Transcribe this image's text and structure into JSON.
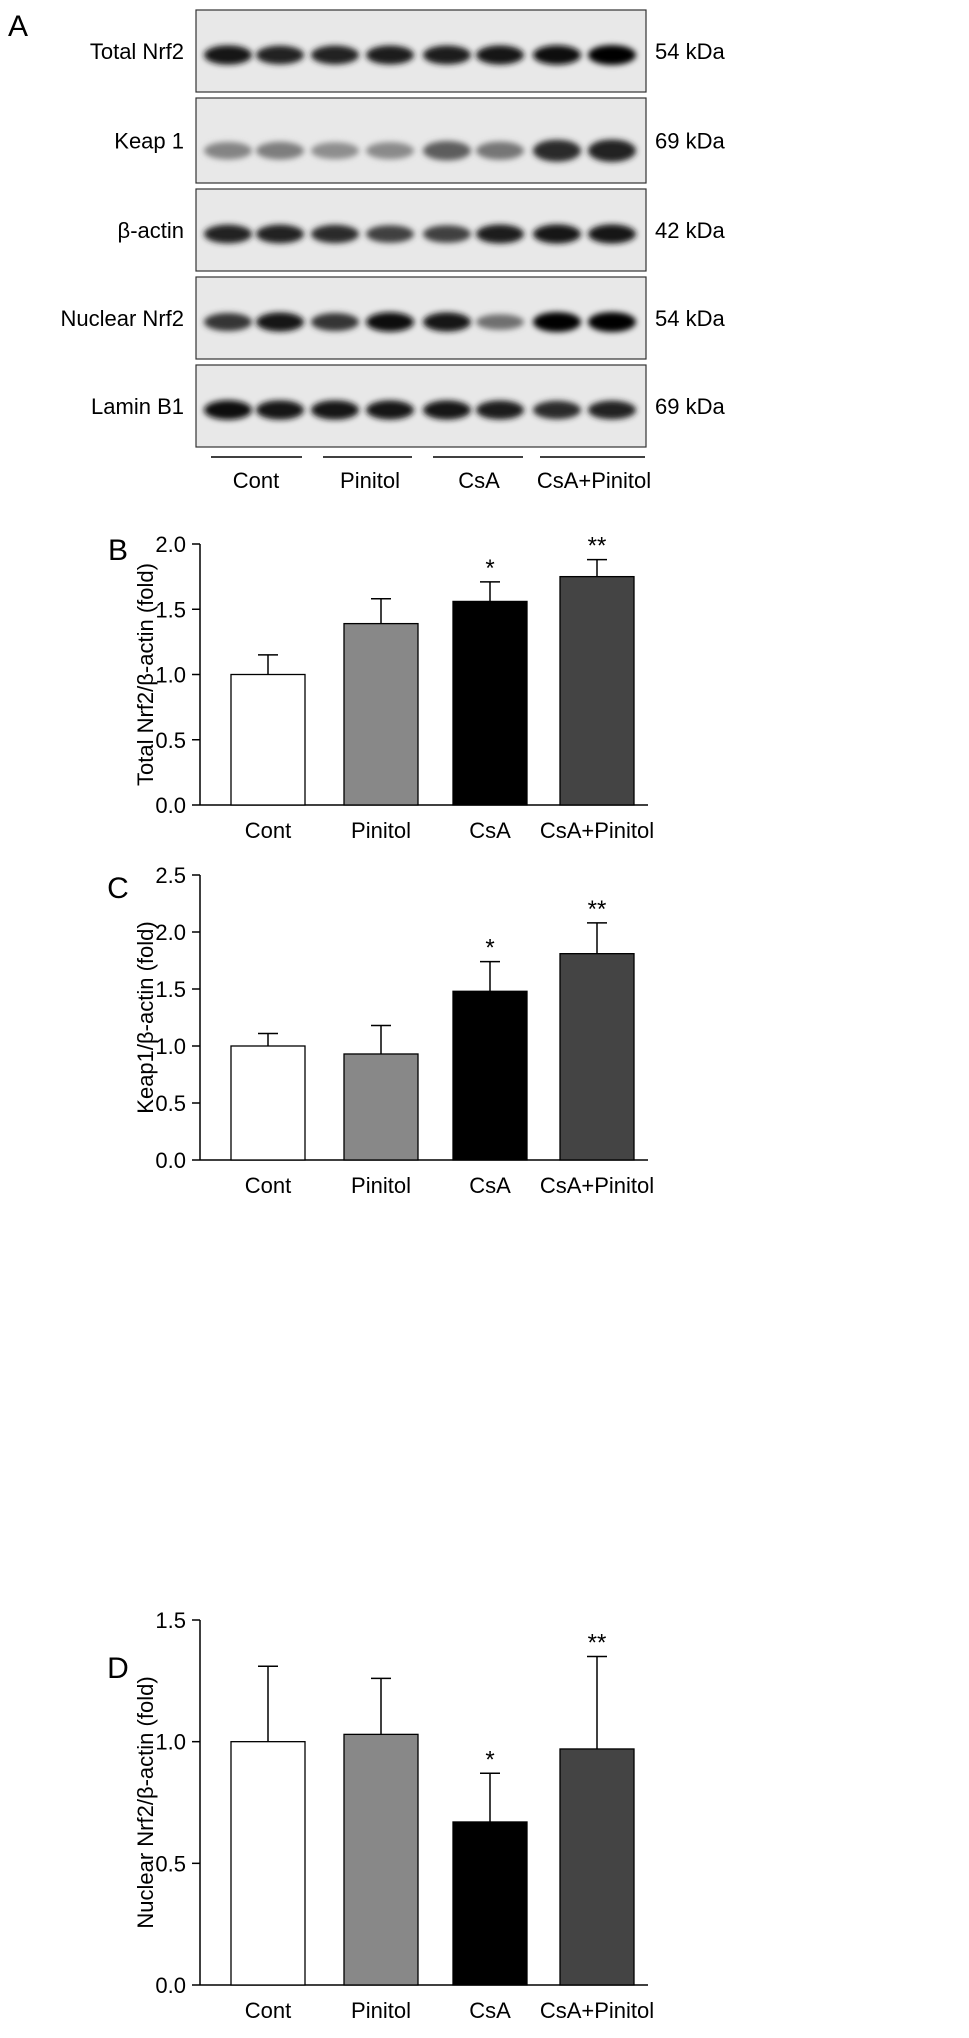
{
  "panel_a": {
    "letter": "A",
    "rows": [
      {
        "label": "Total Nrf2",
        "kda": "54 kDa"
      },
      {
        "label": "Keap 1",
        "kda": "69 kDa"
      },
      {
        "label": "β-actin",
        "kda": "42 kDa"
      },
      {
        "label": "Nuclear Nrf2",
        "kda": "54 kDa"
      },
      {
        "label": "Lamin B1",
        "kda": "69 kDa"
      }
    ],
    "groups": [
      "Cont",
      "Pinitol",
      "CsA",
      "CsA+Pinitol"
    ],
    "band_intensity": [
      [
        0.92,
        0.85,
        0.86,
        0.88,
        0.88,
        0.9,
        0.95,
        1.0
      ],
      [
        0.35,
        0.38,
        0.3,
        0.32,
        0.55,
        0.42,
        0.8,
        0.85
      ],
      [
        0.85,
        0.85,
        0.8,
        0.7,
        0.7,
        0.88,
        0.9,
        0.9
      ],
      [
        0.75,
        0.9,
        0.75,
        0.95,
        0.9,
        0.45,
        1.0,
        1.0
      ],
      [
        0.95,
        0.92,
        0.92,
        0.9,
        0.9,
        0.88,
        0.8,
        0.85
      ]
    ]
  },
  "colors": {
    "cont": "#ffffff",
    "pinitol": "#888888",
    "csa": "#000000",
    "csa_pinitol": "#444444"
  },
  "chart_data": [
    {
      "panel": "B",
      "type": "bar",
      "categories": [
        "Cont",
        "Pinitol",
        "CsA",
        "CsA+Pinitol"
      ],
      "values": [
        1.0,
        1.39,
        1.56,
        1.75
      ],
      "errors": [
        0.15,
        0.19,
        0.15,
        0.13
      ],
      "significance": [
        "",
        "",
        "*",
        "**"
      ],
      "ylabel": "Total Nrf2/β-actin (fold)",
      "ylim": [
        0,
        2.0
      ],
      "yticks": [
        "0.0",
        "0.5",
        "1.0",
        "1.5",
        "2.0"
      ]
    },
    {
      "panel": "C",
      "type": "bar",
      "categories": [
        "Cont",
        "Pinitol",
        "CsA",
        "CsA+Pinitol"
      ],
      "values": [
        1.0,
        0.93,
        1.48,
        1.81
      ],
      "errors": [
        0.11,
        0.25,
        0.26,
        0.27
      ],
      "significance": [
        "",
        "",
        "*",
        "**"
      ],
      "ylabel": "Keap1/β-actin (fold)",
      "ylim": [
        0,
        2.5
      ],
      "yticks": [
        "0.0",
        "0.5",
        "1.0",
        "1.5",
        "2.0",
        "2.5"
      ]
    },
    {
      "panel": "D",
      "type": "bar",
      "categories": [
        "Cont",
        "Pinitol",
        "CsA",
        "CsA+Pinitol"
      ],
      "values": [
        1.0,
        1.03,
        0.67,
        0.97
      ],
      "errors": [
        0.31,
        0.23,
        0.2,
        0.38
      ],
      "significance": [
        "",
        "",
        "*",
        "**"
      ],
      "ylabel": "Nuclear Nrf2/β-actin (fold)",
      "ylim": [
        0,
        1.5
      ],
      "yticks": [
        "0.0",
        "0.5",
        "1.0",
        "1.5"
      ]
    }
  ]
}
